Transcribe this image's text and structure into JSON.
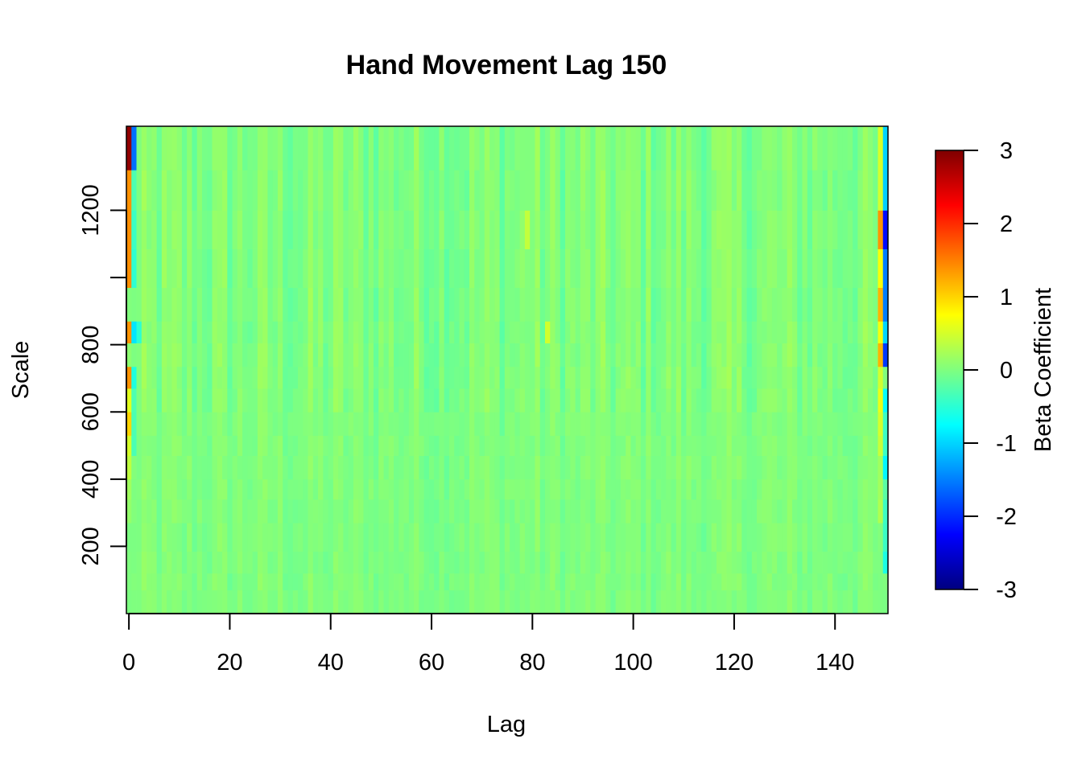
{
  "chart_data": {
    "type": "heatmap",
    "title": "Hand Movement Lag 150",
    "xlabel": "Lag",
    "ylabel": "Scale",
    "xlim": [
      0,
      150
    ],
    "ylim": [
      0,
      1450
    ],
    "x_ticks": [
      0,
      20,
      40,
      60,
      80,
      100,
      120,
      140
    ],
    "y_ticks": [
      200,
      400,
      600,
      800,
      1000,
      1200
    ],
    "y_tick_labels": [
      "200",
      "400",
      "600",
      "800",
      "",
      "1200"
    ],
    "colorbar": {
      "label": "Beta Coefficient",
      "range": [
        -3,
        3
      ],
      "ticks": [
        -3,
        -2,
        -1,
        0,
        1,
        2,
        3
      ],
      "tick_labels": [
        "-3",
        "-2",
        "-1",
        "0",
        "1",
        "2",
        "3"
      ],
      "colors": [
        "#00007F",
        "#0000FF",
        "#007FFF",
        "#00FFFF",
        "#7FFF7F",
        "#FFFF00",
        "#FF7F00",
        "#FF0000",
        "#7F0000"
      ]
    },
    "scale_bands": [
      {
        "from": 0,
        "to": 70
      },
      {
        "from": 70,
        "to": 120
      },
      {
        "from": 120,
        "to": 185
      },
      {
        "from": 185,
        "to": 270
      },
      {
        "from": 270,
        "to": 340
      },
      {
        "from": 340,
        "to": 400
      },
      {
        "from": 400,
        "to": 470
      },
      {
        "from": 470,
        "to": 530
      },
      {
        "from": 530,
        "to": 600
      },
      {
        "from": 600,
        "to": 670
      },
      {
        "from": 670,
        "to": 735
      },
      {
        "from": 735,
        "to": 805
      },
      {
        "from": 805,
        "to": 870
      },
      {
        "from": 870,
        "to": 970
      },
      {
        "from": 970,
        "to": 1085
      },
      {
        "from": 1085,
        "to": 1200
      },
      {
        "from": 1200,
        "to": 1320
      },
      {
        "from": 1320,
        "to": 1450
      }
    ],
    "background_value": 0.0,
    "column_variation": 0.15,
    "special_columns": [
      {
        "lag": 0,
        "values": [
          0,
          0,
          0,
          0,
          0.1,
          0.2,
          0.4,
          0.5,
          1.0,
          0.6,
          1.4,
          0.1,
          1.4,
          0.0,
          1.4,
          1.4,
          1.4,
          2.9
        ]
      },
      {
        "lag": 1,
        "values": [
          0,
          0,
          0,
          0,
          0,
          0,
          0,
          -0.3,
          -0.3,
          -0.3,
          -0.6,
          0,
          -0.9,
          0,
          -0.5,
          -0.4,
          -0.3,
          -1.6
        ]
      },
      {
        "lag": 2,
        "values": [
          0,
          0,
          0,
          0,
          0,
          0,
          0,
          0,
          0,
          0,
          0,
          0,
          -0.5,
          0,
          0,
          0,
          0,
          0
        ]
      },
      {
        "lag": 83,
        "values": [
          0,
          0,
          0,
          0,
          0,
          0,
          0,
          0,
          0,
          0,
          0,
          0,
          0.5,
          0,
          0,
          0,
          0,
          0
        ]
      },
      {
        "lag": 79,
        "values": [
          0,
          0,
          0,
          0,
          0,
          0,
          0,
          0,
          0,
          0,
          0,
          0,
          0,
          0,
          0,
          0.4,
          0,
          0
        ]
      },
      {
        "lag": 149,
        "values": [
          0,
          0,
          0,
          0,
          0.3,
          0.2,
          0.2,
          0.4,
          0.5,
          0.6,
          0.5,
          1.2,
          0.7,
          1.2,
          0.7,
          1.4,
          0.5,
          0.5
        ]
      },
      {
        "lag": 150,
        "values": [
          0,
          0,
          -0.6,
          -0.4,
          -0.4,
          -0.2,
          -0.8,
          -0.4,
          -0.4,
          -0.7,
          0,
          -1.9,
          -1.0,
          -1.5,
          -1.5,
          -2.2,
          -1.0,
          -1.0
        ]
      }
    ]
  }
}
